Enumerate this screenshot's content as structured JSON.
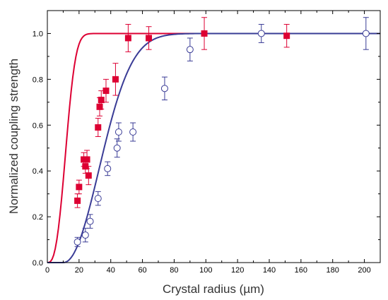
{
  "chart_data": {
    "type": "scatter",
    "xlabel": "Crystal radius (µm)",
    "ylabel": "Normalized coupling strength",
    "xlim": [
      0,
      210
    ],
    "ylim": [
      0,
      1.1
    ],
    "x_ticks": [
      0,
      20,
      40,
      60,
      80,
      100,
      120,
      140,
      160,
      180,
      200
    ],
    "x_tick_labels": [
      "0",
      "20",
      "40",
      "60",
      "80",
      "100",
      "120",
      "140",
      "160",
      "180",
      "200"
    ],
    "y_ticks": [
      0.0,
      0.2,
      0.4,
      0.6,
      0.8,
      1.0
    ],
    "y_tick_labels": [
      "0.0",
      "0.2",
      "0.4",
      "0.6",
      "0.8",
      "1.0"
    ],
    "grid": false,
    "series": [
      {
        "marker": "filled-square",
        "color": "#dd0033",
        "points": [
          {
            "x": 19,
            "y": 0.27,
            "err": 0.03
          },
          {
            "x": 20,
            "y": 0.33,
            "err": 0.03
          },
          {
            "x": 23,
            "y": 0.45,
            "err": 0.03
          },
          {
            "x": 24,
            "y": 0.42,
            "err": 0.03
          },
          {
            "x": 25,
            "y": 0.45,
            "err": 0.04
          },
          {
            "x": 26,
            "y": 0.38,
            "err": 0.04
          },
          {
            "x": 32,
            "y": 0.59,
            "err": 0.04
          },
          {
            "x": 33,
            "y": 0.68,
            "err": 0.04
          },
          {
            "x": 34,
            "y": 0.71,
            "err": 0.04
          },
          {
            "x": 37,
            "y": 0.75,
            "err": 0.05
          },
          {
            "x": 43,
            "y": 0.8,
            "err": 0.07
          },
          {
            "x": 51,
            "y": 0.98,
            "err": 0.06
          },
          {
            "x": 64,
            "y": 0.98,
            "err": 0.05
          },
          {
            "x": 99,
            "y": 1.0,
            "err": 0.07
          },
          {
            "x": 151,
            "y": 0.99,
            "err": 0.05
          }
        ],
        "fit": {
          "k": 0.0007,
          "n": 2.8
        }
      },
      {
        "marker": "open-circle",
        "color": "#3a3c96",
        "points": [
          {
            "x": 19,
            "y": 0.09,
            "err": 0.02
          },
          {
            "x": 24,
            "y": 0.12,
            "err": 0.03
          },
          {
            "x": 27,
            "y": 0.18,
            "err": 0.03
          },
          {
            "x": 32,
            "y": 0.28,
            "err": 0.03
          },
          {
            "x": 38,
            "y": 0.41,
            "err": 0.03
          },
          {
            "x": 44,
            "y": 0.5,
            "err": 0.04
          },
          {
            "x": 45,
            "y": 0.57,
            "err": 0.04
          },
          {
            "x": 54,
            "y": 0.57,
            "err": 0.04
          },
          {
            "x": 74,
            "y": 0.76,
            "err": 0.05
          },
          {
            "x": 90,
            "y": 0.93,
            "err": 0.05
          },
          {
            "x": 135,
            "y": 1.0,
            "err": 0.04
          },
          {
            "x": 201,
            "y": 1.0,
            "err": 0.07
          }
        ],
        "fit": {
          "k": 0.00075,
          "n": 2.1,
          "x0": 10
        }
      }
    ]
  }
}
